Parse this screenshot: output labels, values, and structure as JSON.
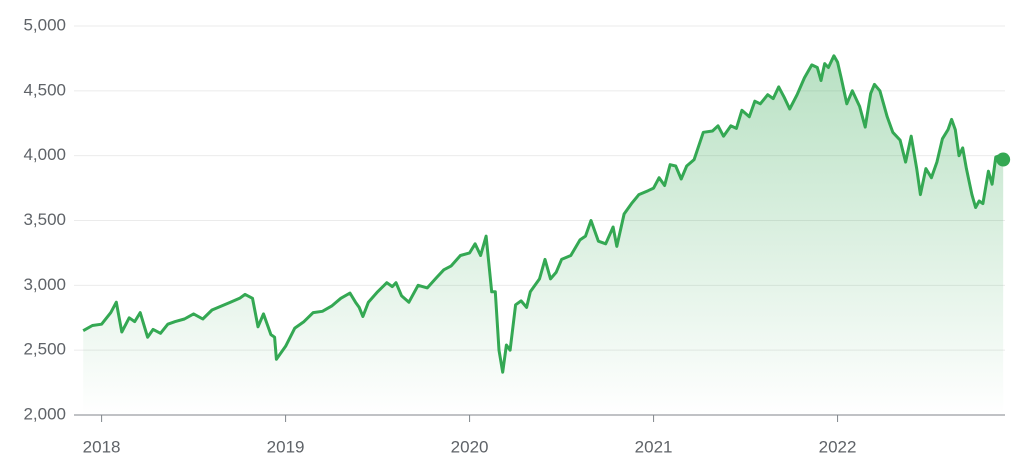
{
  "chart_data": {
    "type": "line",
    "x": [
      2017.9,
      2017.95,
      2018.0,
      2018.05,
      2018.08,
      2018.11,
      2018.15,
      2018.18,
      2018.21,
      2018.25,
      2018.28,
      2018.32,
      2018.36,
      2018.4,
      2018.45,
      2018.5,
      2018.55,
      2018.6,
      2018.65,
      2018.7,
      2018.75,
      2018.78,
      2018.82,
      2018.85,
      2018.88,
      2018.9,
      2018.92,
      2018.94,
      2018.95,
      2019.0,
      2019.05,
      2019.1,
      2019.15,
      2019.2,
      2019.25,
      2019.3,
      2019.35,
      2019.38,
      2019.4,
      2019.42,
      2019.45,
      2019.5,
      2019.55,
      2019.58,
      2019.6,
      2019.63,
      2019.67,
      2019.72,
      2019.77,
      2019.82,
      2019.86,
      2019.9,
      2019.95,
      2020.0,
      2020.03,
      2020.06,
      2020.09,
      2020.12,
      2020.14,
      2020.16,
      2020.18,
      2020.2,
      2020.22,
      2020.25,
      2020.28,
      2020.31,
      2020.33,
      2020.38,
      2020.41,
      2020.44,
      2020.47,
      2020.5,
      2020.55,
      2020.6,
      2020.63,
      2020.66,
      2020.7,
      2020.74,
      2020.78,
      2020.8,
      2020.84,
      2020.88,
      2020.92,
      2020.97,
      2021.0,
      2021.03,
      2021.06,
      2021.09,
      2021.12,
      2021.15,
      2021.18,
      2021.22,
      2021.27,
      2021.32,
      2021.35,
      2021.38,
      2021.42,
      2021.45,
      2021.48,
      2021.52,
      2021.55,
      2021.58,
      2021.62,
      2021.65,
      2021.68,
      2021.71,
      2021.74,
      2021.78,
      2021.82,
      2021.86,
      2021.89,
      2021.91,
      2021.93,
      2021.95,
      2021.98,
      2022.0,
      2022.02,
      2022.05,
      2022.08,
      2022.12,
      2022.15,
      2022.18,
      2022.2,
      2022.23,
      2022.27,
      2022.3,
      2022.34,
      2022.37,
      2022.4,
      2022.43,
      2022.45,
      2022.48,
      2022.51,
      2022.54,
      2022.57,
      2022.6,
      2022.62,
      2022.64,
      2022.66,
      2022.68,
      2022.7,
      2022.73,
      2022.75,
      2022.77,
      2022.79,
      2022.82,
      2022.84,
      2022.86,
      2022.88,
      2022.9
    ],
    "series": [
      {
        "color": "#34a853",
        "values": [
          2650,
          2690,
          2700,
          2790,
          2870,
          2640,
          2750,
          2720,
          2790,
          2600,
          2660,
          2630,
          2700,
          2720,
          2740,
          2780,
          2740,
          2810,
          2840,
          2870,
          2900,
          2930,
          2900,
          2680,
          2780,
          2700,
          2620,
          2600,
          2430,
          2530,
          2670,
          2720,
          2790,
          2800,
          2840,
          2900,
          2940,
          2870,
          2830,
          2760,
          2870,
          2950,
          3020,
          2990,
          3020,
          2920,
          2870,
          3000,
          2980,
          3060,
          3120,
          3150,
          3230,
          3250,
          3320,
          3230,
          3380,
          2950,
          2950,
          2500,
          2330,
          2540,
          2500,
          2850,
          2880,
          2830,
          2950,
          3050,
          3200,
          3050,
          3100,
          3200,
          3230,
          3350,
          3380,
          3500,
          3340,
          3320,
          3450,
          3300,
          3550,
          3630,
          3700,
          3730,
          3750,
          3830,
          3770,
          3930,
          3920,
          3820,
          3920,
          3970,
          4180,
          4190,
          4230,
          4150,
          4230,
          4210,
          4350,
          4300,
          4420,
          4400,
          4470,
          4440,
          4530,
          4450,
          4360,
          4470,
          4600,
          4700,
          4680,
          4580,
          4710,
          4680,
          4770,
          4720,
          4600,
          4400,
          4500,
          4380,
          4220,
          4480,
          4550,
          4500,
          4300,
          4180,
          4120,
          3950,
          4150,
          3900,
          3700,
          3900,
          3830,
          3950,
          4130,
          4200,
          4280,
          4200,
          4000,
          4060,
          3900,
          3700,
          3600,
          3650,
          3630,
          3880,
          3780,
          3990,
          4000,
          3970
        ]
      }
    ],
    "xlim": [
      2017.85,
      2022.91
    ],
    "xticks": [
      2018,
      2019,
      2020,
      2021,
      2022
    ],
    "ylim": [
      2000,
      5000
    ],
    "yticks": [
      {
        "value": 2000,
        "label": "2,000"
      },
      {
        "value": 2500,
        "label": "2,500"
      },
      {
        "value": 3000,
        "label": "3,000"
      },
      {
        "value": 3500,
        "label": "3,500"
      },
      {
        "value": 4000,
        "label": "4,000"
      },
      {
        "value": 4500,
        "label": "4,500"
      },
      {
        "value": 5000,
        "label": "5,000"
      }
    ],
    "grid": true
  }
}
